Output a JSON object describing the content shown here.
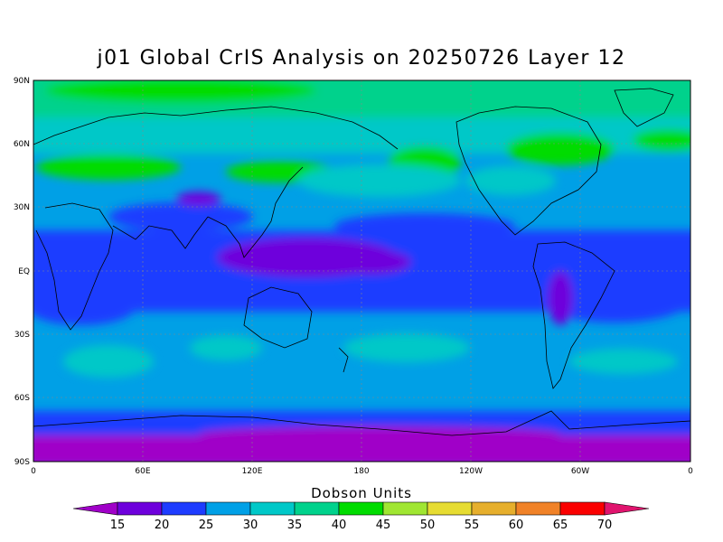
{
  "title": "j01 Global CrIS Analysis on 20250726 Layer 12",
  "map": {
    "lat_ticks": [
      "90N",
      "60N",
      "30N",
      "EQ",
      "30S",
      "60S",
      "90S"
    ],
    "lon_ticks": [
      "0",
      "60E",
      "120E",
      "180",
      "120W",
      "60W",
      "0"
    ],
    "gridlines": true
  },
  "colorbar": {
    "title": "Dobson Units",
    "levels": [
      "15",
      "20",
      "25",
      "30",
      "35",
      "40",
      "45",
      "50",
      "55",
      "60",
      "65",
      "70"
    ],
    "colors": [
      "#a000c8",
      "#6e00dc",
      "#1e3cff",
      "#00a0e6",
      "#00c8c8",
      "#00d28c",
      "#00dc00",
      "#a0e632",
      "#e6dc32",
      "#e6af2d",
      "#f08228",
      "#fa0000",
      "#e0146e"
    ]
  }
}
